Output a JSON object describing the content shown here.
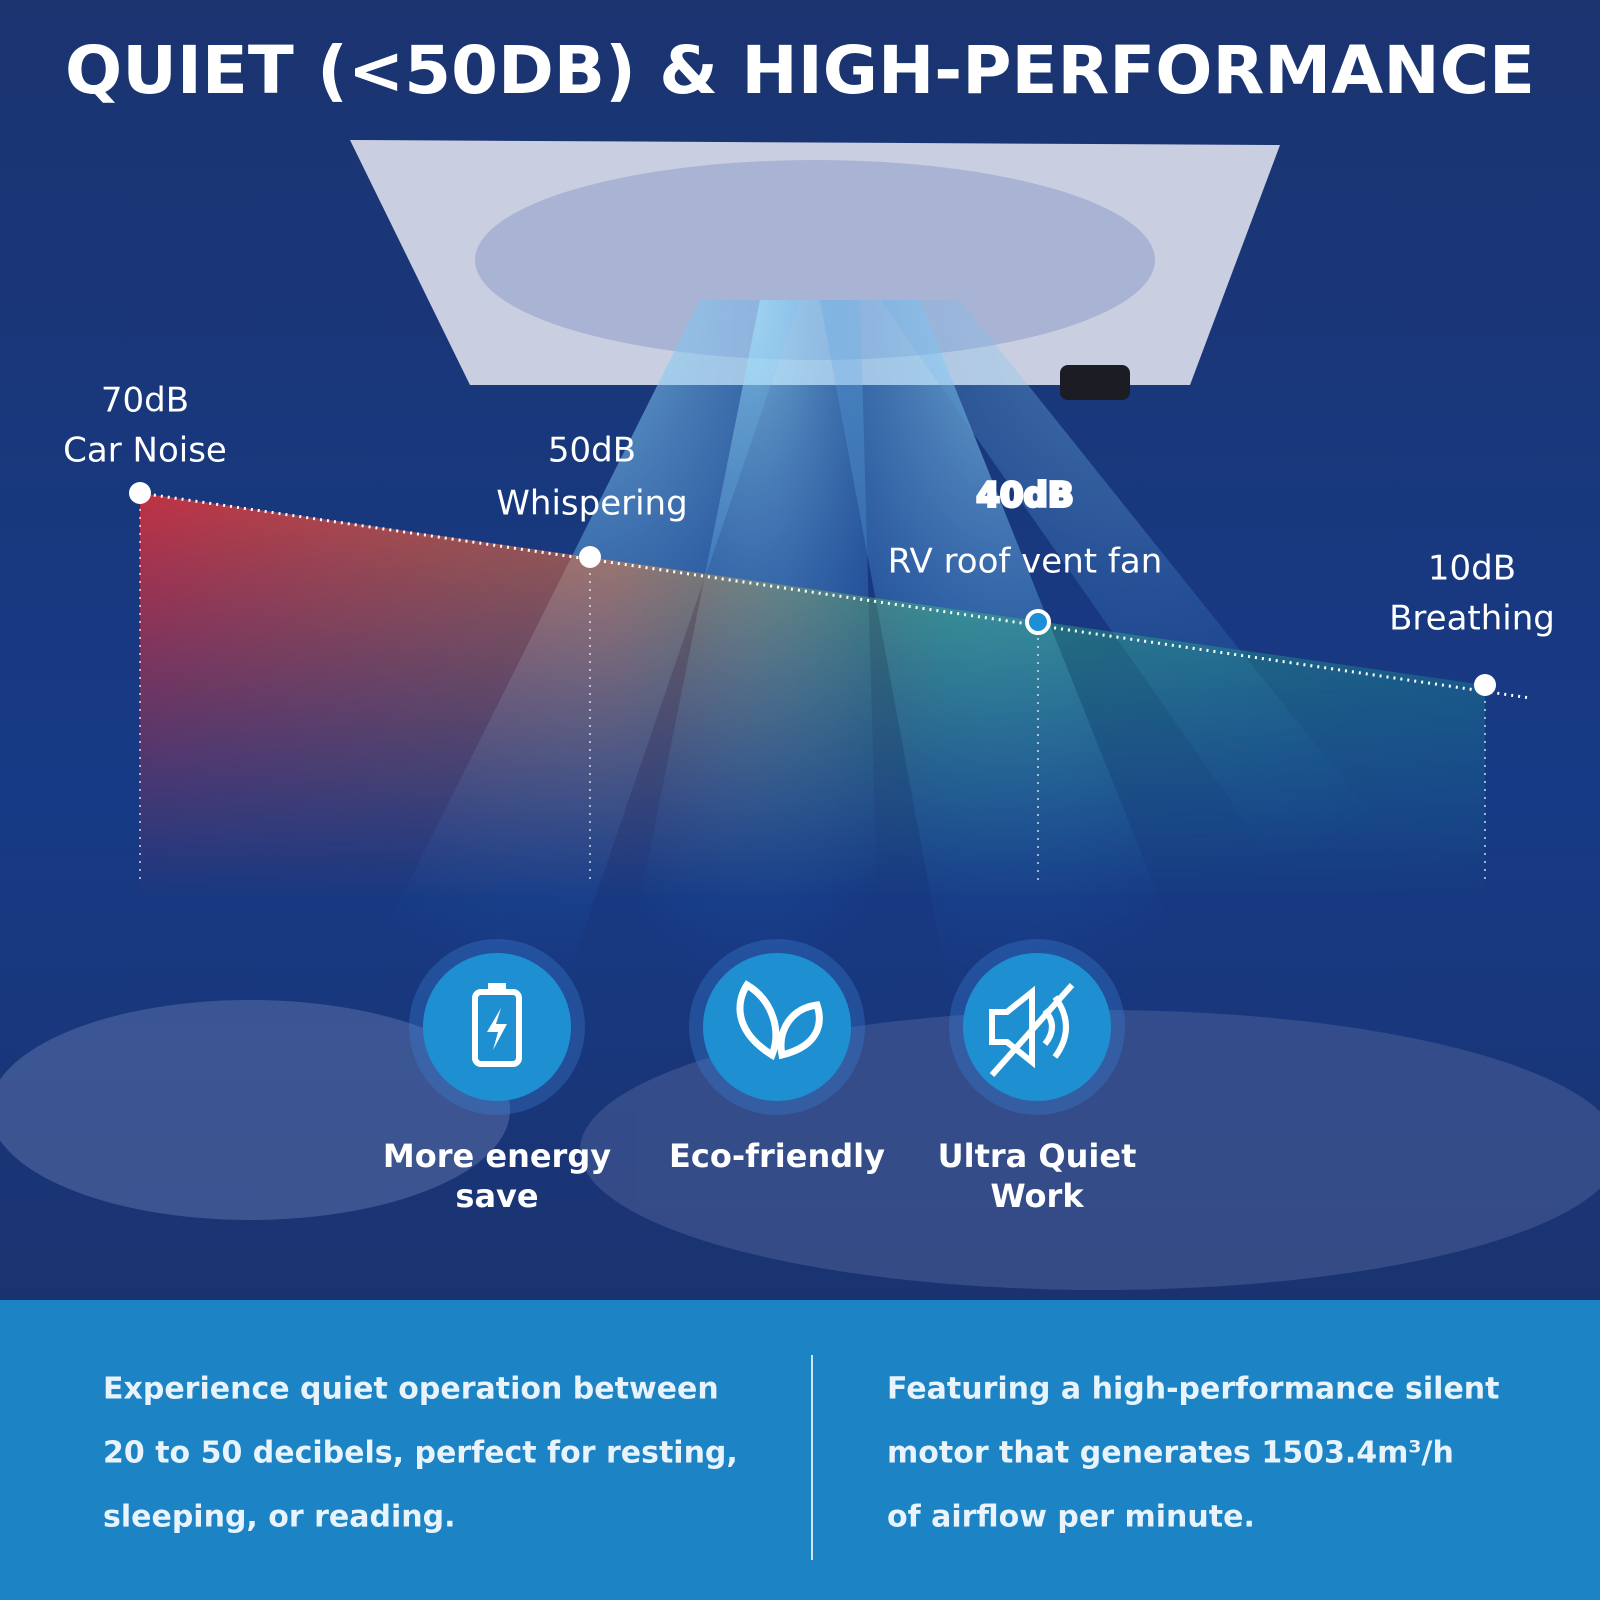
{
  "header": {
    "title": "QUIET (<50DB) & HIGH-PERFORMANCE"
  },
  "levels": [
    {
      "level": "70dB",
      "label": "Car Noise"
    },
    {
      "level": "50dB",
      "label": "Whispering"
    },
    {
      "level": "40dB",
      "label": "RV roof vent  fan"
    },
    {
      "level": "10dB",
      "label": "Breathing"
    }
  ],
  "features": [
    {
      "lines": [
        "More energy",
        "save"
      ]
    },
    {
      "lines": [
        "Eco-friendly"
      ]
    },
    {
      "lines": [
        "Ultra Quiet",
        "Work"
      ]
    }
  ],
  "footer": {
    "left": [
      "Experience quiet operation between",
      "20 to 50 decibels, perfect for resting,",
      "sleeping, or reading."
    ],
    "right": [
      "Featuring a high-performance silent",
      "motor that generates 1503.4m³/h",
      "of airflow per minute."
    ]
  }
}
